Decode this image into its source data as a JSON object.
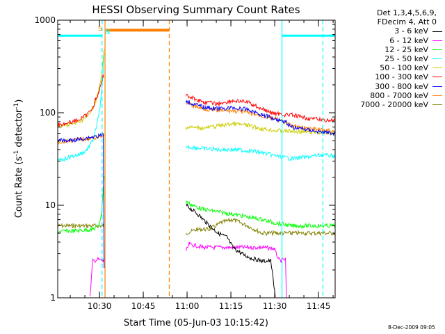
{
  "chart_data": {
    "type": "line",
    "title": "HESSI Observing Summary Count Rates",
    "xlabel": "Start Time (05-Jun-03 10:15:42)",
    "ylabel": "Count Rate (s",
    "ylabel_sup1": "-1",
    "ylabel_mid": " detector",
    "ylabel_sup2": "-1",
    "ylabel_end": ")",
    "yscale": "log",
    "ylim": [
      1,
      1000
    ],
    "xlim_min": [
      0,
      95
    ],
    "y_ticks": [
      {
        "value": 1,
        "label": "1"
      },
      {
        "value": 10,
        "label": "10"
      },
      {
        "value": 100,
        "label": "100"
      },
      {
        "value": 1000,
        "label": "1000"
      }
    ],
    "x_ticks": [
      {
        "value": 14.3,
        "label": "10:30"
      },
      {
        "value": 29.3,
        "label": "10:45"
      },
      {
        "value": 44.3,
        "label": "11:00"
      },
      {
        "value": 59.3,
        "label": "11:15"
      },
      {
        "value": 74.3,
        "label": "11:30"
      },
      {
        "value": 89.3,
        "label": "11:45"
      }
    ],
    "legend_header": [
      "Det 1,3,4,5,6,9,",
      "FDecim 4, Att 0"
    ],
    "series": [
      {
        "name": "3 - 6 keV",
        "color": "#000000",
        "points": [
          [
            44,
            10
          ],
          [
            48,
            8
          ],
          [
            52,
            6
          ],
          [
            55,
            5
          ],
          [
            58,
            4.5
          ],
          [
            60,
            3.5
          ],
          [
            63,
            3
          ],
          [
            66,
            2.7
          ],
          [
            70,
            2.5
          ],
          [
            73,
            2.5
          ],
          [
            74.5,
            1
          ]
        ]
      },
      {
        "name": "6 - 12 keV",
        "color": "#ff00ff",
        "points": [
          [
            11,
            1
          ],
          [
            12,
            2.5
          ],
          [
            14,
            2.6
          ],
          [
            15.5,
            2.5
          ],
          [
            15.9,
            2.6
          ],
          [
            44,
            3.2
          ],
          [
            45,
            3.8
          ],
          [
            50,
            3.5
          ],
          [
            60,
            3.5
          ],
          [
            70,
            3.5
          ],
          [
            74,
            3.4
          ],
          [
            76,
            2.5
          ],
          [
            78,
            2.6
          ],
          [
            78.3,
            1
          ]
        ]
      },
      {
        "name": "12 - 25 keV",
        "color": "#00ff00",
        "points": [
          [
            0,
            5.2
          ],
          [
            6,
            5.3
          ],
          [
            12,
            5.5
          ],
          [
            14,
            6
          ],
          [
            15,
            8
          ],
          [
            15.5,
            14
          ],
          [
            15.9,
            20
          ],
          [
            44,
            11
          ],
          [
            46,
            10
          ],
          [
            50,
            9
          ],
          [
            55,
            8.5
          ],
          [
            60,
            8
          ],
          [
            65,
            7.5
          ],
          [
            70,
            7
          ],
          [
            74,
            6.5
          ],
          [
            80,
            6
          ],
          [
            90,
            6
          ],
          [
            95,
            6
          ]
        ]
      },
      {
        "name": "25 - 50 keV",
        "color": "#00ffff",
        "points": [
          [
            0,
            30
          ],
          [
            4,
            33
          ],
          [
            8,
            36
          ],
          [
            10,
            40
          ],
          [
            12,
            50
          ],
          [
            13,
            65
          ],
          [
            14,
            90
          ],
          [
            15,
            160
          ],
          [
            15.5,
            250
          ],
          [
            15.9,
            430
          ],
          [
            44,
            43
          ],
          [
            50,
            41
          ],
          [
            55,
            40
          ],
          [
            60,
            40
          ],
          [
            65,
            39
          ],
          [
            70,
            37
          ],
          [
            75,
            34
          ],
          [
            80,
            32
          ],
          [
            85,
            33
          ],
          [
            90,
            35
          ],
          [
            95,
            34
          ]
        ]
      },
      {
        "name": "50 - 100 keV",
        "color": "#cccc00",
        "points": [
          [
            0,
            70
          ],
          [
            4,
            74
          ],
          [
            8,
            82
          ],
          [
            10,
            90
          ],
          [
            12,
            110
          ],
          [
            13,
            135
          ],
          [
            14,
            170
          ],
          [
            15,
            250
          ],
          [
            15.5,
            350
          ],
          [
            15.9,
            480
          ],
          [
            44,
            70
          ],
          [
            50,
            68
          ],
          [
            55,
            72
          ],
          [
            60,
            76
          ],
          [
            65,
            73
          ],
          [
            70,
            67
          ],
          [
            75,
            64
          ],
          [
            80,
            63
          ],
          [
            85,
            62
          ],
          [
            90,
            61
          ],
          [
            95,
            60
          ]
        ]
      },
      {
        "name": "100 - 300 keV",
        "color": "#ff0000",
        "points": [
          [
            0,
            74
          ],
          [
            4,
            78
          ],
          [
            8,
            86
          ],
          [
            10,
            95
          ],
          [
            12,
            115
          ],
          [
            13,
            140
          ],
          [
            14,
            160
          ],
          [
            15,
            210
          ],
          [
            15.5,
            260
          ],
          [
            15.9,
            240
          ],
          [
            44,
            155
          ],
          [
            46,
            145
          ],
          [
            50,
            130
          ],
          [
            55,
            125
          ],
          [
            60,
            135
          ],
          [
            65,
            130
          ],
          [
            70,
            110
          ],
          [
            73,
            100
          ],
          [
            75,
            98
          ],
          [
            78,
            95
          ],
          [
            80,
            95
          ],
          [
            83,
            90
          ],
          [
            86,
            87
          ],
          [
            90,
            84
          ],
          [
            95,
            82
          ]
        ]
      },
      {
        "name": "300 - 800 keV",
        "color": "#0000ff",
        "points": [
          [
            0,
            50
          ],
          [
            4,
            50
          ],
          [
            8,
            52
          ],
          [
            12,
            55
          ],
          [
            14,
            56
          ],
          [
            15,
            57
          ],
          [
            15.6,
            58
          ],
          [
            15.9,
            2
          ],
          [
            44,
            135
          ],
          [
            46,
            125
          ],
          [
            50,
            115
          ],
          [
            55,
            110
          ],
          [
            60,
            113
          ],
          [
            65,
            108
          ],
          [
            70,
            95
          ],
          [
            75,
            85
          ],
          [
            78,
            80
          ],
          [
            80,
            70
          ],
          [
            85,
            66
          ],
          [
            90,
            62
          ],
          [
            95,
            60
          ]
        ]
      },
      {
        "name": "800 - 7000 keV",
        "color": "#ff8000",
        "points": [
          [
            0,
            48
          ],
          [
            4,
            50
          ],
          [
            8,
            52
          ],
          [
            12,
            53
          ],
          [
            14,
            55
          ],
          [
            15,
            56
          ],
          [
            15.6,
            57
          ],
          [
            15.9,
            58
          ],
          [
            44,
            130
          ],
          [
            46,
            120
          ],
          [
            50,
            110
          ],
          [
            55,
            105
          ],
          [
            60,
            105
          ],
          [
            65,
            100
          ],
          [
            70,
            92
          ],
          [
            75,
            85
          ],
          [
            78,
            78
          ],
          [
            80,
            72
          ],
          [
            85,
            68
          ],
          [
            90,
            65
          ],
          [
            95,
            63
          ]
        ]
      },
      {
        "name": "7000 - 20000 keV",
        "color": "#808000",
        "points": [
          [
            0,
            6
          ],
          [
            5,
            6
          ],
          [
            10,
            6
          ],
          [
            12,
            6
          ],
          [
            14,
            6
          ],
          [
            15,
            6
          ],
          [
            15.6,
            6
          ],
          [
            15.9,
            6
          ],
          [
            44,
            5
          ],
          [
            48,
            5.5
          ],
          [
            52,
            5.5
          ],
          [
            56,
            6.5
          ],
          [
            60,
            7
          ],
          [
            65,
            6
          ],
          [
            70,
            5
          ],
          [
            75,
            5
          ],
          [
            80,
            5
          ],
          [
            85,
            5
          ],
          [
            90,
            5
          ],
          [
            95,
            5
          ]
        ]
      }
    ],
    "annotations": [
      {
        "text": "S",
        "color": "#ff8000"
      },
      {
        "text": "N",
        "color": "#00ffff"
      }
    ],
    "orange_bar": {
      "x_start": 16.5,
      "x_end": 38.2,
      "y": 780,
      "color": "#ff8000"
    },
    "cyan_bars": [
      {
        "x_start": 0,
        "x_end": 15.2,
        "y": 680,
        "color": "#00ffff"
      },
      {
        "x_start": 76.8,
        "x_end": 95,
        "y": 680,
        "color": "#00ffff"
      }
    ],
    "vlines": [
      {
        "x": 15.2,
        "color": "#00ffff",
        "dash": true
      },
      {
        "x": 16.2,
        "color": "#ff8000",
        "dash": false
      },
      {
        "x": 38.2,
        "color": "#ff8000",
        "dash": true
      },
      {
        "x": 76.8,
        "color": "#00ffff",
        "dash": false
      },
      {
        "x": 90.8,
        "color": "#00ffff",
        "dash": true
      }
    ]
  },
  "timestamp": "8-Dec-2009 09:05"
}
